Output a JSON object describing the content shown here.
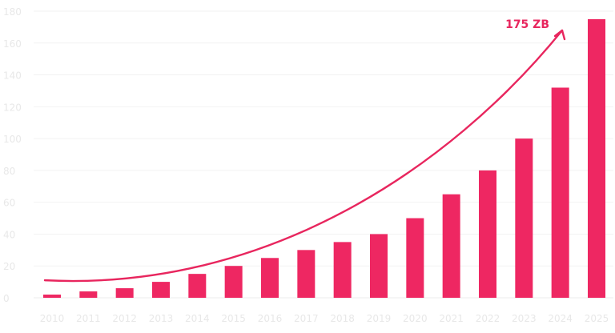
{
  "chart_data": {
    "type": "bar",
    "title": "",
    "xlabel": "",
    "ylabel": "",
    "categories": [
      "2010",
      "2011",
      "2012",
      "2013",
      "2014",
      "2015",
      "2016",
      "2017",
      "2018",
      "2019",
      "2020",
      "2021",
      "2022",
      "2023",
      "2024",
      "2025"
    ],
    "values": [
      2,
      4,
      6,
      10,
      15,
      20,
      25,
      30,
      35,
      40,
      50,
      65,
      80,
      100,
      132,
      175
    ],
    "ylim": [
      0,
      180
    ],
    "yticks": [
      "0",
      "20",
      "40",
      "60",
      "80",
      "100",
      "120",
      "140",
      "160",
      "180"
    ],
    "grid": true,
    "legend": "none",
    "annotation": {
      "text": "175 ZB",
      "target_category": "2025",
      "target_value": 175
    },
    "colors": {
      "bar": "#ee2762",
      "trend": "#e8265e",
      "tick_text": "#e8e8e8",
      "grid": "#f2f2f2"
    }
  }
}
